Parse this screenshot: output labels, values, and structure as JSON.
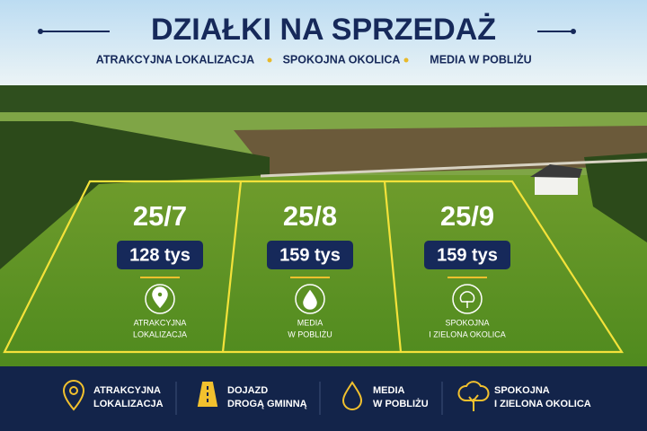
{
  "header": {
    "title": "DZIAŁKI NA SPRZEDAŻ",
    "tags": [
      "ATRAKCYJNA LOKALIZACJA",
      "SPOKOJNA OKOLICA",
      "MEDIA W POBLIŻU"
    ]
  },
  "plots": [
    {
      "id": "25/7",
      "price": "128 tys",
      "feature": [
        "ATRAKCYJNA",
        "LOKALIZACJA"
      ]
    },
    {
      "id": "25/8",
      "price": "159 tys",
      "feature": [
        "MEDIA",
        "W POBLIŻU"
      ]
    },
    {
      "id": "25/9",
      "price": "159 tys",
      "feature": [
        "SPOKOJNA",
        "I ZIELONA OKOLICA"
      ]
    }
  ],
  "footer": {
    "items": [
      {
        "lines": [
          "ATRAKCYJNA",
          "LOKALIZACJA"
        ]
      },
      {
        "lines": [
          "DOJAZD",
          "DROGĄ GMINNĄ"
        ]
      },
      {
        "lines": [
          "MEDIA",
          "W POBLIŻU"
        ]
      },
      {
        "lines": [
          "SPOKOJNA",
          "I ZIELONA OKOLICA"
        ]
      }
    ]
  }
}
